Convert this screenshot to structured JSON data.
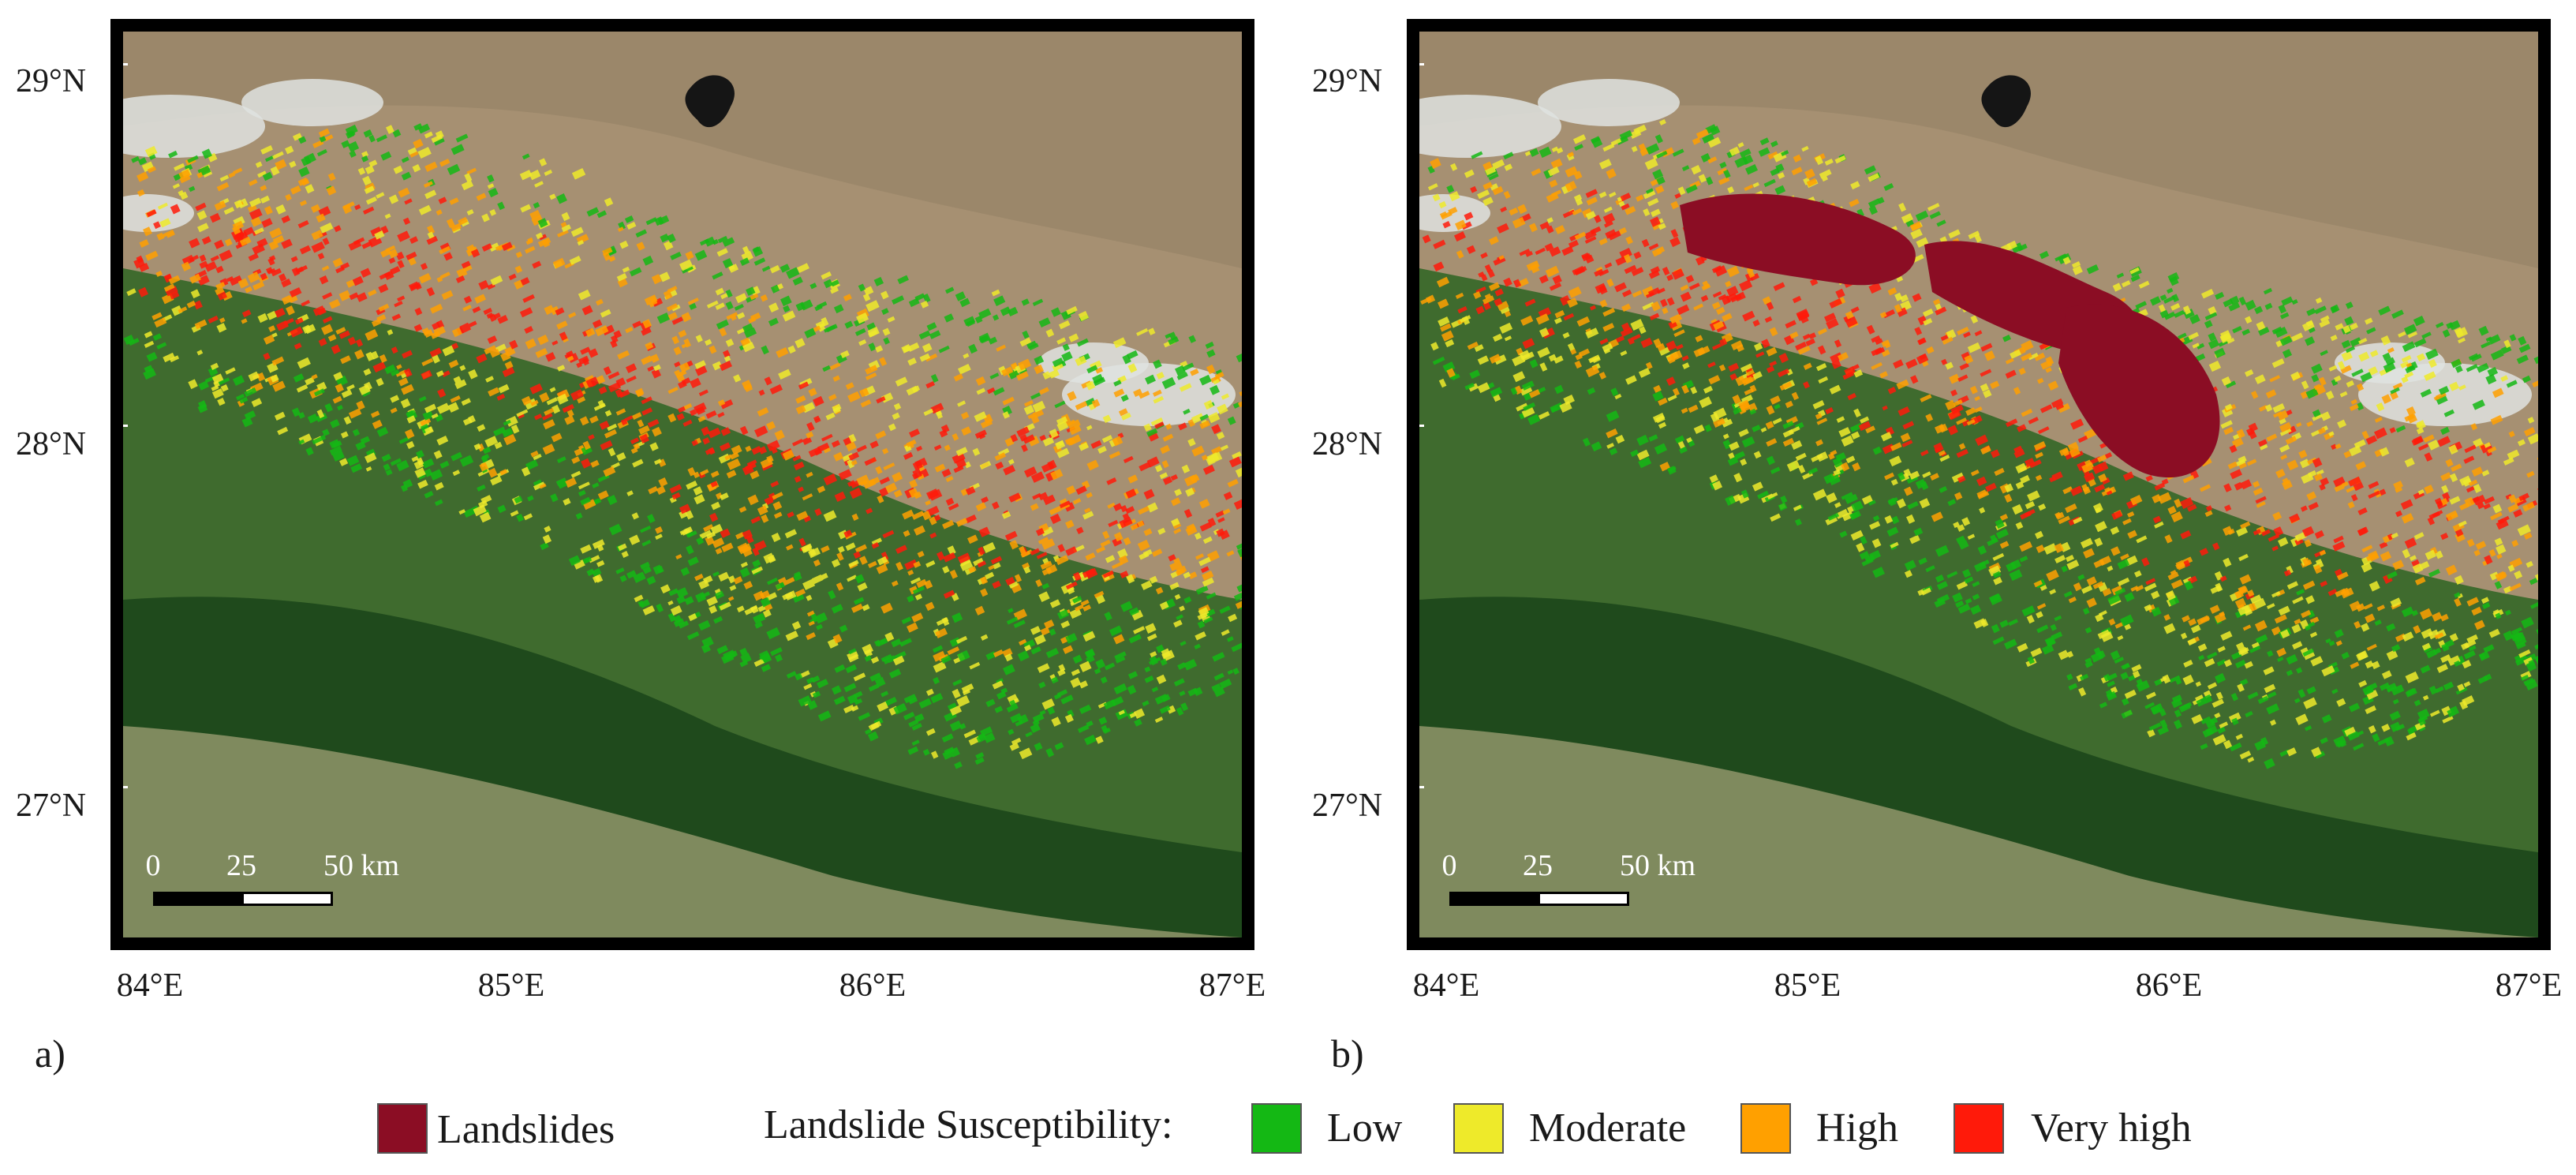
{
  "panels": [
    {
      "letter": "a)",
      "lat_ticks": [
        "29°N",
        "28°N",
        "27°N"
      ],
      "lon_ticks": [
        "84°E",
        "85°E",
        "86°E",
        "87°E"
      ],
      "scale": {
        "labels": [
          "0",
          "25",
          "50 km"
        ]
      },
      "show_landslides": false
    },
    {
      "letter": "b)",
      "lat_ticks": [
        "29°N",
        "28°N",
        "27°N"
      ],
      "lon_ticks": [
        "84°E",
        "85°E",
        "86°E",
        "87°E"
      ],
      "scale": {
        "labels": [
          "0",
          "25",
          "50 km"
        ]
      },
      "show_landslides": true
    }
  ],
  "legend": {
    "landslides_label": "Landslides",
    "landslides_color": "#8b0d24",
    "susceptibility_title": "Landslide Susceptibility:",
    "classes": [
      {
        "label": "Low",
        "color": "#14b814"
      },
      {
        "label": "Moderate",
        "color": "#eeea2a"
      },
      {
        "label": "High",
        "color": "#ffa000"
      },
      {
        "label": "Very high",
        "color": "#ff1a0a"
      }
    ]
  }
}
